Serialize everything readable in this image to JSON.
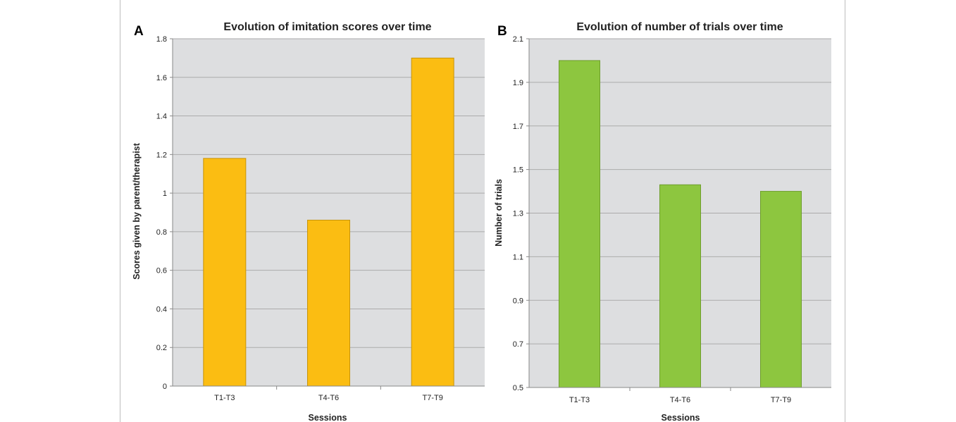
{
  "chart_data": [
    {
      "type": "bar",
      "panel_label": "A",
      "title": "Evolution of imitation scores over time",
      "xlabel": "Sessions",
      "ylabel": "Scores given by parent/therapist",
      "categories": [
        "T1-T3",
        "T4-T6",
        "T7-T9"
      ],
      "values": [
        1.18,
        0.86,
        1.7
      ],
      "ylim": [
        0,
        1.8
      ],
      "yticks": [
        0,
        0.2,
        0.4,
        0.6,
        0.8,
        1,
        1.2,
        1.4,
        1.6,
        1.8
      ],
      "ytick_labels": [
        "0",
        "0.2",
        "0.4",
        "0.6",
        "0.8",
        "1",
        "1.2",
        "1.4",
        "1.6",
        "1.8"
      ],
      "bar_color": "#FBBD12",
      "bar_edge_color": "#C8940A",
      "plot_background": "#DDDEE0",
      "grid": true
    },
    {
      "type": "bar",
      "panel_label": "B",
      "title": "Evolution of number of trials over time",
      "xlabel": "Sessions",
      "ylabel": "Number of trials",
      "categories": [
        "T1-T3",
        "T4-T6",
        "T7-T9"
      ],
      "values": [
        2.0,
        1.43,
        1.4
      ],
      "ylim": [
        0.5,
        2.1
      ],
      "yticks": [
        0.5,
        0.7,
        0.9,
        1.1,
        1.3,
        1.5,
        1.7,
        1.9,
        2.1
      ],
      "ytick_labels": [
        "0.5",
        "0.7",
        "0.9",
        "1.1",
        "1.3",
        "1.5",
        "1.7",
        "1.9",
        "2.1"
      ],
      "bar_color": "#8DC63F",
      "bar_edge_color": "#6E9E2C",
      "plot_background": "#DDDEE0",
      "grid": true
    }
  ]
}
